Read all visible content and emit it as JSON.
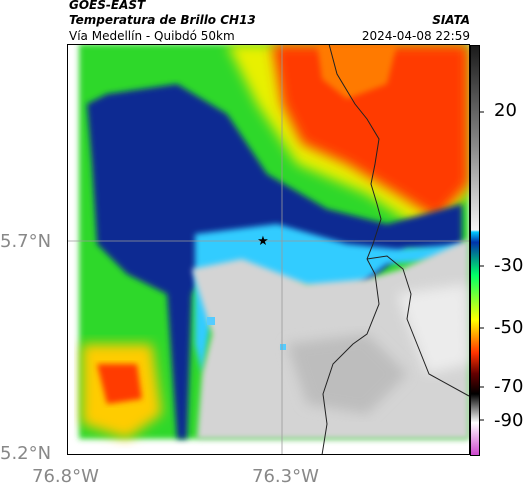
{
  "header": {
    "satellite": "GOES-EAST",
    "product": "Temperatura de Brillo CH13",
    "route": "Vía Medellín - Quibdó 50km",
    "agency": "SIATA",
    "timestamp": "2024-04-08 22:59"
  },
  "axes": {
    "lat_labels": [
      "5.7°N",
      "5.2°N"
    ],
    "lon_labels": [
      "76.8°W",
      "76.3°W"
    ]
  },
  "colorbar": {
    "tick_labels": [
      "20",
      "-30",
      "-50",
      "-70",
      "-90"
    ],
    "colors": [
      "#1a1a1a",
      "#8c8c8c",
      "#f0f0f0",
      "#1e3c8c",
      "#00aaff",
      "#00ff66",
      "#ffff00",
      "#ff3300",
      "#330000",
      "#d066d0"
    ]
  },
  "map": {
    "marker_icon": "star-icon",
    "colors": {
      "cold_clear": "#d8d8d8",
      "deep_blue": "#102a8c",
      "green": "#22dd33",
      "yellow": "#eeee00",
      "red": "#ff2a00",
      "cyan": "#33ccff"
    }
  }
}
